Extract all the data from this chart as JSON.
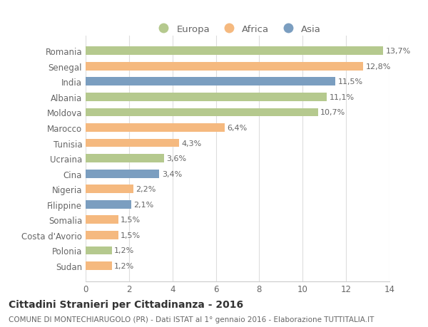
{
  "categories": [
    "Romania",
    "Senegal",
    "India",
    "Albania",
    "Moldova",
    "Marocco",
    "Tunisia",
    "Ucraina",
    "Cina",
    "Nigeria",
    "Filippine",
    "Somalia",
    "Costa d'Avorio",
    "Polonia",
    "Sudan"
  ],
  "values": [
    13.7,
    12.8,
    11.5,
    11.1,
    10.7,
    6.4,
    4.3,
    3.6,
    3.4,
    2.2,
    2.1,
    1.5,
    1.5,
    1.2,
    1.2
  ],
  "labels": [
    "13,7%",
    "12,8%",
    "11,5%",
    "11,1%",
    "10,7%",
    "6,4%",
    "4,3%",
    "3,6%",
    "3,4%",
    "2,2%",
    "2,1%",
    "1,5%",
    "1,5%",
    "1,2%",
    "1,2%"
  ],
  "continents": [
    "Europa",
    "Africa",
    "Asia",
    "Europa",
    "Europa",
    "Africa",
    "Africa",
    "Europa",
    "Asia",
    "Africa",
    "Asia",
    "Africa",
    "Africa",
    "Europa",
    "Africa"
  ],
  "colors": {
    "Europa": "#b5c98e",
    "Africa": "#f5b97f",
    "Asia": "#7b9ec0"
  },
  "legend_labels": [
    "Europa",
    "Africa",
    "Asia"
  ],
  "xlim": [
    0,
    14
  ],
  "xticks": [
    0,
    2,
    4,
    6,
    8,
    10,
    12,
    14
  ],
  "title": "Cittadini Stranieri per Cittadinanza - 2016",
  "subtitle": "COMUNE DI MONTECHIARUGOLO (PR) - Dati ISTAT al 1° gennaio 2016 - Elaborazione TUTTITALIA.IT",
  "background_color": "#ffffff",
  "bar_height": 0.55,
  "title_fontsize": 10,
  "subtitle_fontsize": 7.5,
  "label_fontsize": 8,
  "tick_fontsize": 8.5,
  "legend_fontsize": 9.5
}
